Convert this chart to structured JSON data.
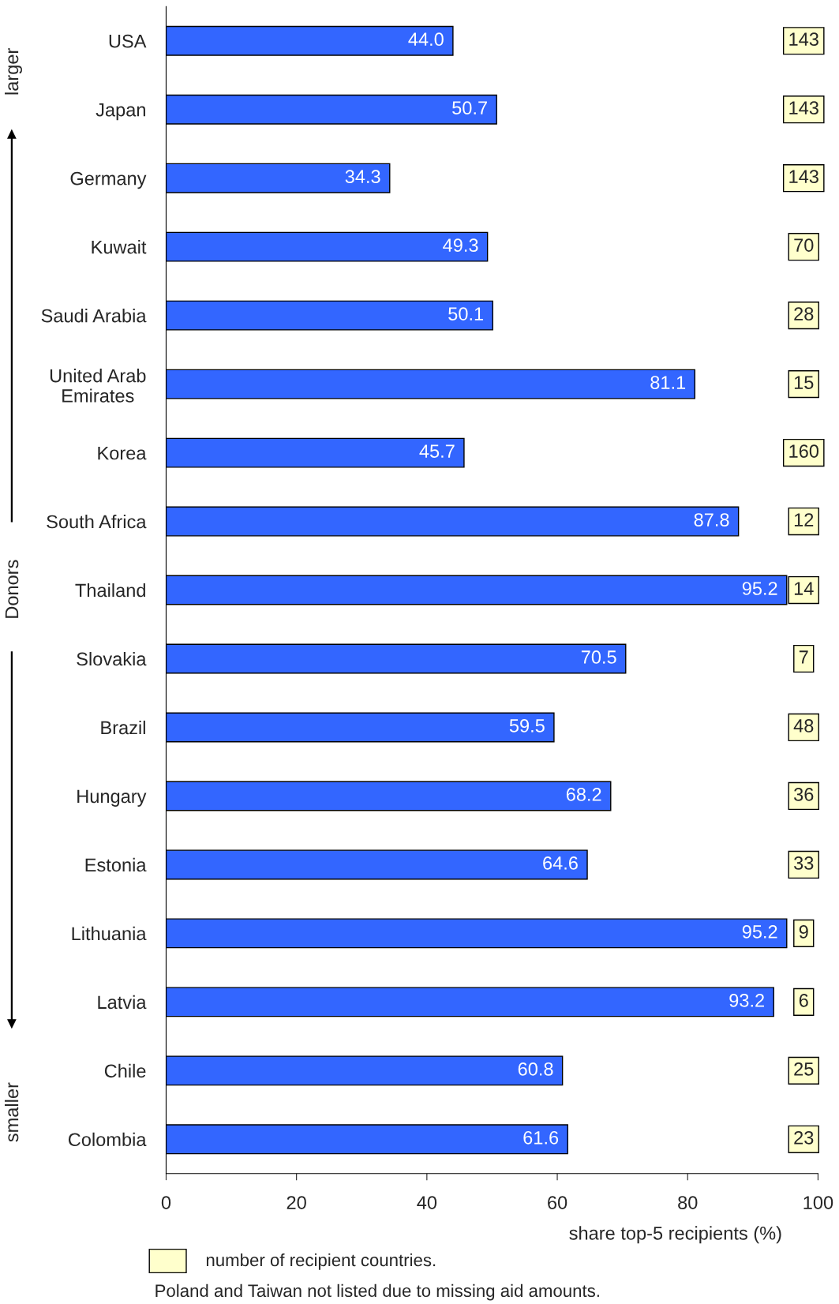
{
  "chart_data": {
    "type": "bar",
    "orientation": "horizontal",
    "xlabel": "share top-5 recipients (%)",
    "ylabel": "Donors",
    "categories": [
      "USA",
      "Japan",
      "Germany",
      "Kuwait",
      "Saudi Arabia",
      "United Arab\nEmirates",
      "Korea",
      "South Africa",
      "Thailand",
      "Slovakia",
      "Brazil",
      "Hungary",
      "Estonia",
      "Lithuania",
      "Latvia",
      "Chile",
      "Colombia"
    ],
    "values": [
      44.0,
      50.7,
      34.3,
      49.3,
      50.1,
      81.1,
      45.7,
      87.8,
      95.2,
      70.5,
      59.5,
      68.2,
      64.6,
      95.2,
      93.2,
      60.8,
      61.6
    ],
    "value_labels": [
      "44.0",
      "50.7",
      "34.3",
      "49.3",
      "50.1",
      "81.1",
      "45.7",
      "87.8",
      "95.2",
      "70.5",
      "59.5",
      "68.2",
      "64.6",
      "95.2",
      "93.2",
      "60.8",
      "61.6"
    ],
    "color": "#3366ff",
    "xlim": [
      0,
      100
    ],
    "xticks": [
      0,
      20,
      40,
      60,
      80,
      100
    ],
    "grid": false,
    "annotations": [
      "larger",
      "smaller",
      "number of recipient countries.",
      "Poland and Taiwan not listed due to missing aid amounts.",
      "143",
      "143",
      "143",
      "70",
      "28",
      "15",
      "160",
      "12",
      "14",
      "7",
      "48",
      "36",
      "33",
      "9",
      "6",
      "25",
      "23"
    ]
  }
}
